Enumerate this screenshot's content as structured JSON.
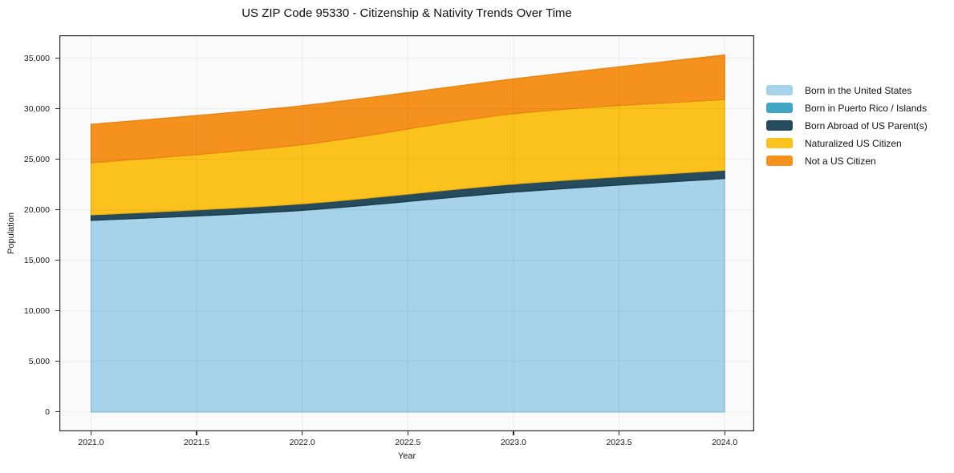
{
  "chart_data": {
    "type": "area",
    "stacked": true,
    "title": "US ZIP Code 95330 - Citizenship & Nativity Trends Over Time",
    "xlabel": "Year",
    "ylabel": "Population",
    "x": [
      2021,
      2022,
      2023,
      2024
    ],
    "series": [
      {
        "name": "Born in the United States",
        "values": [
          18950,
          19950,
          21750,
          23100
        ],
        "fill": "#A6D3EA",
        "edge": "#92C5DF"
      },
      {
        "name": "Born in Puerto Rico / Islands",
        "values": [
          0,
          0,
          0,
          0
        ],
        "fill": "#41A5C4",
        "edge": "#3695B3"
      },
      {
        "name": "Born Abroad of US Parent(s)",
        "values": [
          550,
          650,
          800,
          820
        ],
        "fill": "#264B5D",
        "edge": "#1C3B4A"
      },
      {
        "name": "Naturalized US Citizen",
        "values": [
          5150,
          5850,
          6950,
          7000
        ],
        "fill": "#FBC11D",
        "edge": "#EFB30E"
      },
      {
        "name": "Not a US Citizen",
        "values": [
          3800,
          3850,
          3450,
          4400
        ],
        "fill": "#F5921E",
        "edge": "#E8830F"
      }
    ],
    "xlim": [
      2020.85,
      2024.14
    ],
    "ylim": [
      -1920,
      37270
    ],
    "x_ticks": [
      {
        "v": 2021.0,
        "label": "2021.0"
      },
      {
        "v": 2021.5,
        "label": "2021.5"
      },
      {
        "v": 2022.0,
        "label": "2022.0"
      },
      {
        "v": 2022.5,
        "label": "2022.5"
      },
      {
        "v": 2023.0,
        "label": "2023.0"
      },
      {
        "v": 2023.5,
        "label": "2023.5"
      },
      {
        "v": 2024.0,
        "label": "2024.0"
      }
    ],
    "y_ticks": [
      {
        "v": 0,
        "label": "0"
      },
      {
        "v": 5000,
        "label": "5,000"
      },
      {
        "v": 10000,
        "label": "10,000"
      },
      {
        "v": 15000,
        "label": "15,000"
      },
      {
        "v": 20000,
        "label": "20,000"
      },
      {
        "v": 25000,
        "label": "25,000"
      },
      {
        "v": 30000,
        "label": "30,000"
      },
      {
        "v": 35000,
        "label": "35,000"
      }
    ],
    "grid": true,
    "legend_position": "right",
    "colors": {
      "plot_bg": "#FAFAFA",
      "axis": "#2B2B2B",
      "grid_overlay": "rgba(0,0,0,0.06)",
      "text": "#1A1A1A"
    }
  }
}
